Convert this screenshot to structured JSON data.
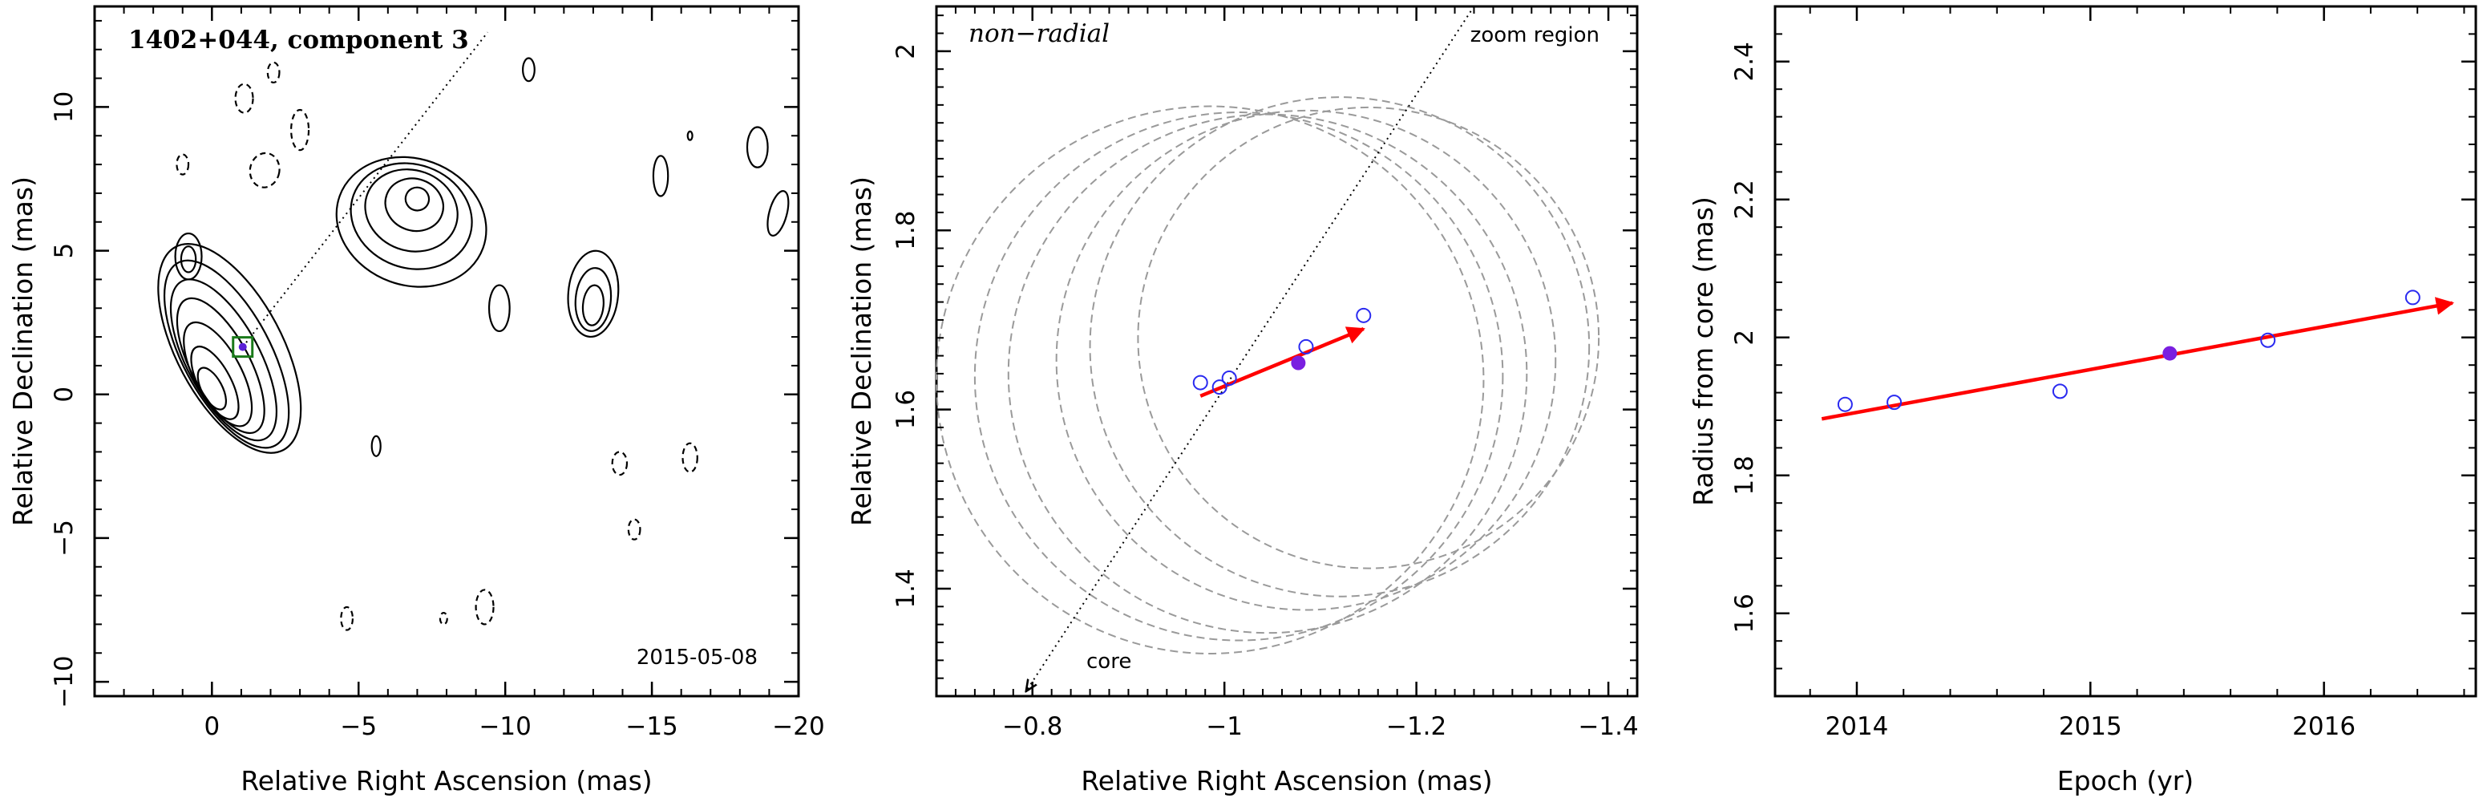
{
  "chart_data": [
    {
      "type": "contour",
      "annotation_title": "1402+044, component 3",
      "annotation_date": "2015-05-08",
      "xlabel": "Relative Right Ascension (mas)",
      "ylabel": "Relative Declination (mas)",
      "xlim": [
        4,
        -20
      ],
      "ylim": [
        -10.5,
        13.5
      ],
      "xticks": [
        0,
        -5,
        -10,
        -15,
        -20
      ],
      "yticks": [
        -10,
        -5,
        0,
        5,
        10
      ],
      "component_marker": {
        "x": -1.05,
        "y": 1.65
      },
      "trajectory_line": {
        "x": [
          -1.05,
          -9.4
        ],
        "y": [
          1.65,
          12.6
        ]
      },
      "contours": [
        {
          "kind": "solid",
          "cx": -0.6,
          "cy": 1.6,
          "rx": 1.8,
          "ry": 4.0,
          "rot": -28
        },
        {
          "kind": "solid",
          "cx": -0.5,
          "cy": 1.4,
          "rx": 1.5,
          "ry": 3.6,
          "rot": -28
        },
        {
          "kind": "solid",
          "cx": -0.4,
          "cy": 1.2,
          "rx": 1.25,
          "ry": 3.1,
          "rot": -28
        },
        {
          "kind": "solid",
          "cx": -0.3,
          "cy": 1.0,
          "rx": 1.0,
          "ry": 2.6,
          "rot": -28
        },
        {
          "kind": "solid",
          "cx": -0.2,
          "cy": 0.7,
          "rx": 0.8,
          "ry": 2.0,
          "rot": -28
        },
        {
          "kind": "solid",
          "cx": -0.1,
          "cy": 0.4,
          "rx": 0.55,
          "ry": 1.4,
          "rot": -28
        },
        {
          "kind": "solid",
          "cx": 0.0,
          "cy": 0.2,
          "rx": 0.35,
          "ry": 0.8,
          "rot": -28
        },
        {
          "kind": "solid",
          "cx": -6.8,
          "cy": 6.0,
          "rx": 2.6,
          "ry": 2.2,
          "rot": 20
        },
        {
          "kind": "solid",
          "cx": -6.8,
          "cy": 6.2,
          "rx": 2.1,
          "ry": 1.8,
          "rot": 20
        },
        {
          "kind": "solid",
          "cx": -6.8,
          "cy": 6.4,
          "rx": 1.6,
          "ry": 1.4,
          "rot": 20
        },
        {
          "kind": "solid",
          "cx": -6.9,
          "cy": 6.6,
          "rx": 1.0,
          "ry": 0.9,
          "rot": 20
        },
        {
          "kind": "solid",
          "cx": -7.0,
          "cy": 6.8,
          "rx": 0.4,
          "ry": 0.4,
          "rot": 20
        },
        {
          "kind": "solid",
          "cx": -13.0,
          "cy": 3.5,
          "rx": 0.85,
          "ry": 1.5,
          "rot": 5
        },
        {
          "kind": "solid",
          "cx": -13.0,
          "cy": 3.3,
          "rx": 0.6,
          "ry": 1.1,
          "rot": 5
        },
        {
          "kind": "solid",
          "cx": -13.0,
          "cy": 3.1,
          "rx": 0.35,
          "ry": 0.7,
          "rot": 5
        },
        {
          "kind": "solid",
          "cx": 0.8,
          "cy": 4.8,
          "rx": 0.45,
          "ry": 0.8,
          "rot": 0
        },
        {
          "kind": "solid",
          "cx": 0.8,
          "cy": 4.7,
          "rx": 0.25,
          "ry": 0.45,
          "rot": 0
        },
        {
          "kind": "solid",
          "cx": -9.8,
          "cy": 3.0,
          "rx": 0.35,
          "ry": 0.8,
          "rot": 0
        },
        {
          "kind": "solid",
          "cx": -10.8,
          "cy": 11.3,
          "rx": 0.2,
          "ry": 0.4,
          "rot": 0
        },
        {
          "kind": "solid",
          "cx": -15.3,
          "cy": 7.6,
          "rx": 0.25,
          "ry": 0.7,
          "rot": 0
        },
        {
          "kind": "solid",
          "cx": -18.6,
          "cy": 8.6,
          "rx": 0.35,
          "ry": 0.7,
          "rot": 0
        },
        {
          "kind": "solid",
          "cx": -19.3,
          "cy": 6.3,
          "rx": 0.3,
          "ry": 0.8,
          "rot": 15
        },
        {
          "kind": "solid",
          "cx": -16.3,
          "cy": 9.0,
          "rx": 0.08,
          "ry": 0.15,
          "rot": 0
        },
        {
          "kind": "solid",
          "cx": -5.6,
          "cy": -1.8,
          "rx": 0.15,
          "ry": 0.35,
          "rot": 0
        },
        {
          "kind": "dashed",
          "cx": 1.0,
          "cy": 8.0,
          "rx": 0.2,
          "ry": 0.35,
          "rot": 0
        },
        {
          "kind": "dashed",
          "cx": -1.1,
          "cy": 10.3,
          "rx": 0.3,
          "ry": 0.5,
          "rot": 0
        },
        {
          "kind": "dashed",
          "cx": -2.1,
          "cy": 11.2,
          "rx": 0.2,
          "ry": 0.35,
          "rot": 0
        },
        {
          "kind": "dashed",
          "cx": -1.8,
          "cy": 7.8,
          "rx": 0.5,
          "ry": 0.6,
          "rot": 10
        },
        {
          "kind": "dashed",
          "cx": -3.0,
          "cy": 9.2,
          "rx": 0.3,
          "ry": 0.7,
          "rot": 0
        },
        {
          "kind": "dashed",
          "cx": -13.9,
          "cy": -2.4,
          "rx": 0.25,
          "ry": 0.4,
          "rot": 0
        },
        {
          "kind": "dashed",
          "cx": -16.3,
          "cy": -2.2,
          "rx": 0.25,
          "ry": 0.5,
          "rot": 0
        },
        {
          "kind": "dashed",
          "cx": -14.4,
          "cy": -4.7,
          "rx": 0.2,
          "ry": 0.35,
          "rot": 0
        },
        {
          "kind": "dashed",
          "cx": -4.6,
          "cy": -7.8,
          "rx": 0.2,
          "ry": 0.4,
          "rot": 0
        },
        {
          "kind": "dashed",
          "cx": -7.9,
          "cy": -7.8,
          "rx": 0.12,
          "ry": 0.2,
          "rot": 0
        },
        {
          "kind": "dashed",
          "cx": -9.3,
          "cy": -7.4,
          "rx": 0.3,
          "ry": 0.6,
          "rot": 0
        }
      ]
    },
    {
      "type": "scatter",
      "annotation_title": "non−radial",
      "annotation_zoom": "zoom region",
      "annotation_core": "core",
      "xlabel": "Relative Right Ascension (mas)",
      "ylabel": "Relative Declination (mas)",
      "xlim": [
        -0.7,
        -1.43
      ],
      "ylim": [
        1.28,
        2.05
      ],
      "xticks": [
        -0.8,
        -1,
        -1.2,
        -1.4
      ],
      "xtick_labels": [
        "−0.8",
        "−1",
        "−1.2",
        "−1.4"
      ],
      "yticks": [
        1.4,
        1.6,
        1.8,
        2
      ],
      "ytick_labels": [
        "1.4",
        "1.6",
        "1.8",
        "2"
      ],
      "points_open": {
        "x": [
          -0.975,
          -0.995,
          -1.005,
          -1.085,
          -1.145
        ],
        "y": [
          1.63,
          1.625,
          1.635,
          1.67,
          1.705
        ]
      },
      "point_filled": {
        "x": -1.077,
        "y": 1.652
      },
      "arrow": {
        "x": [
          -0.975,
          -1.145
        ],
        "y": [
          1.615,
          1.69
        ]
      },
      "dotted_line": {
        "x": [
          -0.79,
          -1.26
        ],
        "y": [
          1.28,
          2.05
        ]
      },
      "error_circles": [
        {
          "cx": -0.985,
          "cy": 1.633,
          "r": 0.285
        },
        {
          "cx": -1.015,
          "cy": 1.637,
          "r": 0.275
        },
        {
          "cx": -1.045,
          "cy": 1.64,
          "r": 0.27
        },
        {
          "cx": -1.085,
          "cy": 1.655,
          "r": 0.26
        },
        {
          "cx": -1.12,
          "cy": 1.67,
          "r": 0.26
        },
        {
          "cx": -1.15,
          "cy": 1.68,
          "r": 0.24
        }
      ]
    },
    {
      "type": "scatter",
      "xlabel": "Epoch (yr)",
      "ylabel": "Radius from core (mas)",
      "xlim": [
        2013.65,
        2016.65
      ],
      "ylim": [
        1.48,
        2.48
      ],
      "xticks": [
        2014,
        2015,
        2016
      ],
      "xtick_labels": [
        "2014",
        "2015",
        "2016"
      ],
      "yticks": [
        1.6,
        1.8,
        2,
        2.2,
        2.4
      ],
      "ytick_labels": [
        "1.6",
        "1.8",
        "2",
        "2.2",
        "2.4"
      ],
      "points_open": {
        "x": [
          2013.95,
          2014.16,
          2014.87,
          2015.76,
          2016.38
        ],
        "y": [
          1.903,
          1.906,
          1.922,
          1.996,
          2.058
        ]
      },
      "point_filled": {
        "x": 2015.34,
        "y": 1.977
      },
      "arrow": {
        "x": [
          2013.85,
          2016.55
        ],
        "y": [
          1.882,
          2.05
        ]
      }
    }
  ]
}
